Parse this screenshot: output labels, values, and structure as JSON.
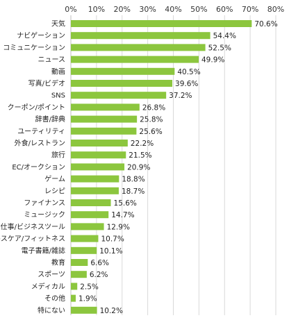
{
  "chart_data": {
    "type": "bar",
    "orientation": "horizontal",
    "title": "",
    "xlabel": "",
    "ylabel": "",
    "x_ticks": [
      "0%",
      "10%",
      "20%",
      "30%",
      "40%",
      "50%",
      "60%",
      "70%",
      "80%"
    ],
    "xlim": [
      0,
      80
    ],
    "grid": true,
    "bar_color": "#8cc63e",
    "value_suffix": "%",
    "categories": [
      "天気",
      "ナビゲーション",
      "コミュニケーション",
      "ニュース",
      "動画",
      "写真/ビデオ",
      "SNS",
      "クーポン/ポイント",
      "辞書/辞典",
      "ユーティリティ",
      "外食/レストラン",
      "旅行",
      "EC/オークション",
      "ゲーム",
      "レシピ",
      "ファイナンス",
      "ミュージック",
      "仕事/ビジネスツール",
      "ヘルスケア/フィットネス",
      "電子書籍/雑誌",
      "教育",
      "スポーツ",
      "メディカル",
      "その他",
      "特にない"
    ],
    "values": [
      70.6,
      54.4,
      52.5,
      49.9,
      40.5,
      39.6,
      37.2,
      26.8,
      25.8,
      25.6,
      22.2,
      21.5,
      20.9,
      18.8,
      18.7,
      15.6,
      14.7,
      12.9,
      10.7,
      10.1,
      6.6,
      6.2,
      2.5,
      1.9,
      10.2
    ]
  }
}
